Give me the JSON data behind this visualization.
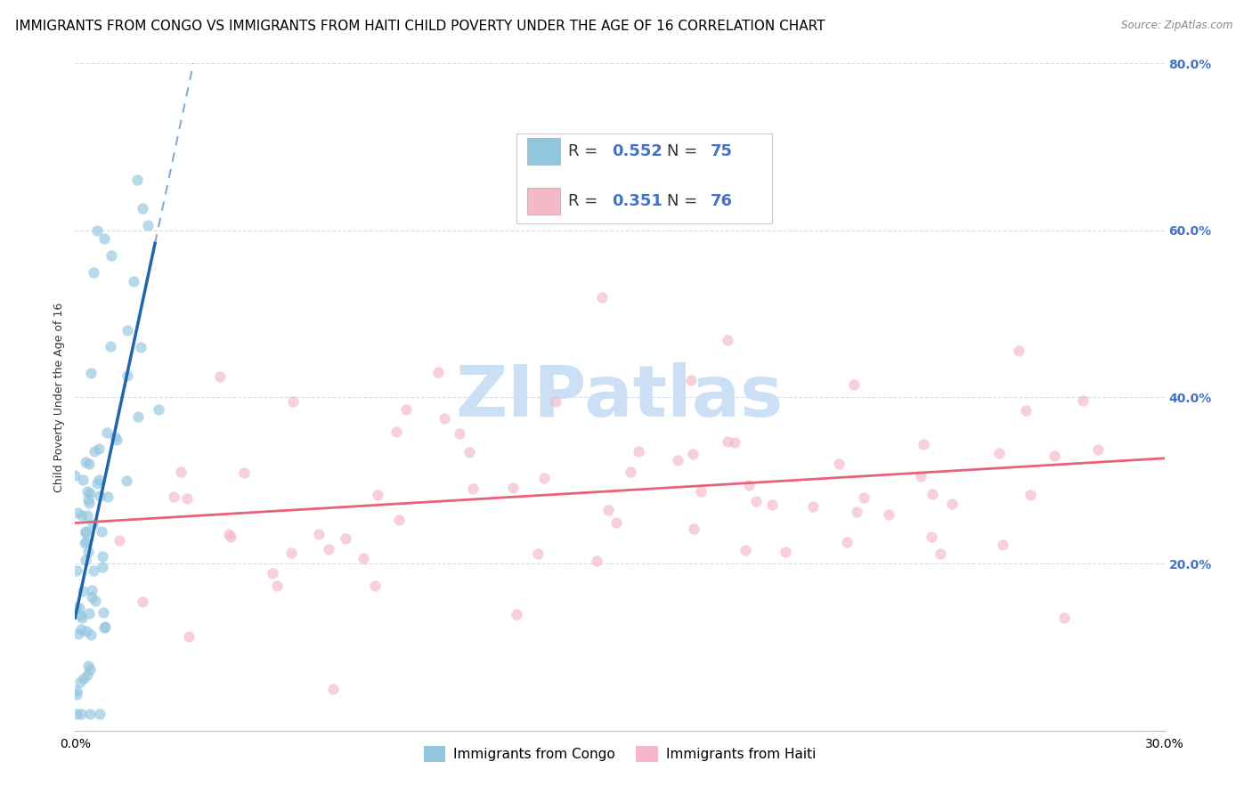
{
  "title": "IMMIGRANTS FROM CONGO VS IMMIGRANTS FROM HAITI CHILD POVERTY UNDER THE AGE OF 16 CORRELATION CHART",
  "source": "Source: ZipAtlas.com",
  "ylabel": "Child Poverty Under the Age of 16",
  "xlim": [
    0.0,
    0.3
  ],
  "ylim": [
    0.0,
    0.8
  ],
  "ytick_right_labels": [
    "20.0%",
    "40.0%",
    "60.0%",
    "80.0%"
  ],
  "ytick_right_vals": [
    0.2,
    0.4,
    0.6,
    0.8
  ],
  "congo_color": "#92c5de",
  "haiti_color": "#f4b8c8",
  "congo_line_color": "#2166ac",
  "haiti_line_color": "#e8607a",
  "congo_R": 0.552,
  "congo_N": 75,
  "haiti_R": 0.351,
  "haiti_N": 76,
  "watermark": "ZIPatlas",
  "watermark_color": "#cce0f5",
  "background_color": "#ffffff",
  "grid_color": "#d8dce8",
  "title_fontsize": 11,
  "axis_label_fontsize": 9,
  "tick_fontsize": 10,
  "legend_fontsize": 13
}
